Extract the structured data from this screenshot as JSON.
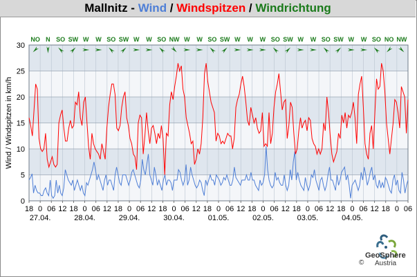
{
  "title": {
    "station": "Mallnitz",
    "sep1": " - ",
    "wind": "Wind",
    "sep2": " / ",
    "gusts": "Windspitzen",
    "sep3": " / ",
    "direction": "Windrichtung"
  },
  "colors": {
    "title_station": "#000000",
    "wind": "#4f7fd6",
    "gusts": "#ff0000",
    "direction": "#1a7a1a",
    "band_dark": "#dfe6ee",
    "band_light": "#f4f6f9",
    "grid": "#b9c3cf"
  },
  "chart_data": {
    "type": "line",
    "xlabel": "",
    "ylabel": "Wind / Windspitzen in km/h",
    "ylim": [
      0,
      30
    ],
    "yticks": [
      0,
      5,
      10,
      15,
      20,
      25,
      30
    ],
    "x_hour_ticks": [
      "18",
      "0",
      "06",
      "12",
      "18",
      "0",
      "06",
      "12",
      "18",
      "0",
      "06",
      "12",
      "18",
      "0",
      "06",
      "12",
      "18",
      "0",
      "06",
      "12",
      "18",
      "0",
      "06",
      "12",
      "18",
      "0",
      "06",
      "12",
      "18",
      "0",
      "06",
      "12",
      "18",
      "0",
      "06"
    ],
    "x_date_labels": [
      "27.04.",
      "28.04.",
      "29.04.",
      "30.04.",
      "01.05.",
      "02.05.",
      "03.05.",
      "04.05."
    ],
    "time_range": "26.04. 18:00 – 04.05. 06:00",
    "direction_labels": [
      "NO",
      "N",
      "SO",
      "SW",
      "W",
      "W",
      "SO",
      "SW",
      "W",
      "W",
      "SO",
      "NW",
      "W",
      "W",
      "SO",
      "SW",
      "W",
      "W",
      "W",
      "SO",
      "SW",
      "W",
      "W",
      "SO",
      "SW",
      "W",
      "W",
      "SO",
      "NO",
      "NW"
    ],
    "series": [
      {
        "name": "Wind",
        "values": [
          4,
          4.5,
          5.2,
          1.5,
          3,
          2,
          1.5,
          1.5,
          1,
          1,
          2,
          2.5,
          1.5,
          1,
          4,
          1,
          0.5,
          1,
          4,
          1.5,
          3,
          1.5,
          1,
          2.5,
          6,
          5,
          4,
          3.5,
          3,
          4,
          2,
          3,
          4,
          3,
          2,
          3,
          1.5,
          1,
          3.5,
          3,
          4,
          5,
          6,
          7.5,
          6,
          4,
          5,
          4,
          3,
          2,
          4,
          5,
          3,
          4,
          4,
          3,
          2,
          5,
          6.5,
          5,
          3.5,
          3,
          5,
          5,
          5,
          4,
          3,
          4,
          5.5,
          6,
          5,
          4,
          3,
          2.5,
          4,
          8,
          6,
          5,
          7,
          9,
          5,
          4,
          3,
          6.5,
          5,
          3,
          4,
          3,
          2,
          4,
          5,
          3,
          4,
          4,
          3.5,
          2,
          4,
          4,
          4,
          6,
          5.5,
          4,
          3,
          4,
          7,
          3,
          4,
          6.5,
          5,
          4,
          3,
          2.5,
          3,
          4,
          3.5,
          2,
          1,
          4,
          3,
          4,
          5,
          4,
          4,
          3,
          5,
          4.5,
          4,
          3,
          3.5,
          4.5,
          4,
          5,
          4,
          3,
          3,
          4,
          6.5,
          4.5,
          4,
          3.5,
          3,
          4,
          4,
          4,
          5,
          4,
          4,
          5.5,
          4,
          4,
          3,
          2.5,
          2,
          4,
          3,
          3.5,
          5,
          10.5,
          6,
          4,
          3,
          2.5,
          3,
          5.5,
          4,
          4.5,
          3.5,
          3,
          3,
          5,
          3,
          2,
          3,
          6,
          4,
          7.5,
          9.5,
          4,
          5.5,
          4,
          3,
          2.5,
          2,
          4.5,
          3,
          2,
          3,
          5,
          4.5,
          6,
          4,
          3,
          2,
          4,
          4.5,
          3,
          2,
          3,
          5,
          6.5,
          4,
          4,
          3,
          2,
          5,
          3,
          4,
          5.5,
          6,
          6.5,
          4,
          5,
          3,
          0.5,
          3,
          3.5,
          4,
          3,
          2,
          3,
          5.5,
          4,
          6.5,
          5,
          3,
          4,
          5.5,
          6.5,
          4,
          5,
          3,
          2.5,
          4,
          2.5,
          3.5,
          2.5,
          4.5,
          4,
          3,
          2,
          1.5,
          4,
          5,
          3,
          4,
          2,
          1.5,
          5.5,
          4,
          1.5,
          3,
          4
        ]
      },
      {
        "name": "Windspitzen",
        "values": [
          16,
          14.5,
          12.5,
          17.5,
          22.5,
          21.5,
          12,
          10,
          9.5,
          10,
          13,
          8,
          6.5,
          7.5,
          8.5,
          7,
          6.5,
          7,
          15,
          16.5,
          17.5,
          14,
          11.5,
          11.5,
          14,
          15.5,
          14,
          14.5,
          19,
          18.5,
          21,
          16,
          14.5,
          19,
          20,
          15,
          10.5,
          8,
          13,
          11,
          10,
          9.5,
          9,
          8,
          11,
          9.5,
          8,
          14,
          18,
          20.5,
          22.5,
          22.5,
          20.5,
          14,
          13.5,
          14.5,
          18,
          20,
          21,
          16,
          14.5,
          12,
          11,
          9,
          8.5,
          6,
          15,
          16.5,
          16,
          9,
          12.5,
          17,
          13.5,
          11,
          14,
          14.5,
          13,
          11,
          13,
          12,
          14.5,
          12,
          5,
          13,
          12.5,
          18.5,
          21,
          19.5,
          22,
          24,
          26.5,
          25,
          26,
          21.5,
          20,
          16,
          14.5,
          13,
          11,
          11.5,
          7,
          8,
          10,
          9,
          11,
          16,
          24.5,
          26.5,
          23,
          21,
          19,
          18,
          17,
          11.5,
          13,
          12.5,
          11,
          11.5,
          11,
          12,
          13,
          12.5,
          12.5,
          10,
          12,
          18,
          19.5,
          20.5,
          22.5,
          24,
          22,
          19,
          15.5,
          14.5,
          18,
          16.5,
          15,
          16,
          14,
          13,
          13.5,
          17,
          10.5,
          11,
          10.5,
          17,
          11,
          13,
          18,
          21,
          22.5,
          24.5,
          21,
          17.5,
          19,
          19.5,
          12,
          14.5,
          19,
          18,
          13,
          9,
          10,
          13.5,
          16,
          14,
          15,
          15.5,
          13.5,
          16,
          15.5,
          12,
          11,
          10.5,
          9,
          10,
          9,
          10,
          15,
          13.5,
          20,
          17,
          12.5,
          9,
          7.5,
          8.5,
          9.5,
          13,
          12,
          16.5,
          15,
          17,
          14,
          16.5,
          16,
          17,
          19,
          16,
          11,
          20.5,
          22.5,
          24,
          18,
          11,
          9,
          8,
          13,
          14.5,
          10,
          17,
          23.5,
          21.5,
          22,
          26.5,
          25,
          21,
          15,
          12,
          9,
          12,
          15,
          19.5,
          19,
          17,
          14,
          22,
          21,
          20,
          13,
          19.5
        ]
      }
    ],
    "grid": true,
    "legend": "title"
  },
  "logo": {
    "name": "GeoSphere",
    "sub": "Austria",
    "copyright": "©"
  }
}
